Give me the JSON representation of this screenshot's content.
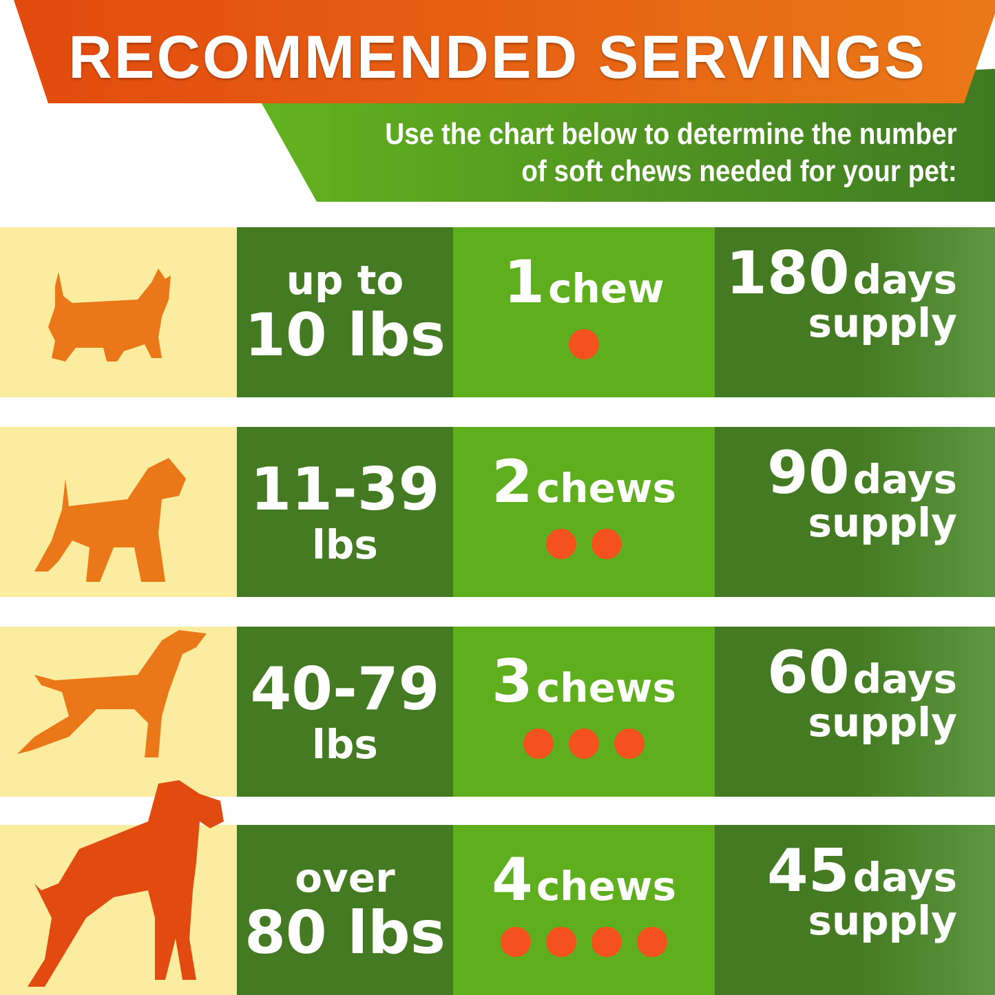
{
  "header": {
    "title": "RECOMMENDED SERVINGS",
    "subtitle_line1": "Use the chart below to determine the number",
    "subtitle_line2": "of soft chews needed for your pet:"
  },
  "colors": {
    "orange": "#e24a0e",
    "dark_green": "#437a22",
    "light_green": "#5fae1e",
    "cream": "#fbeca0",
    "dot": "#f4511e"
  },
  "rows": [
    {
      "icon": "small-terrier-silhouette",
      "weight_top": "up to",
      "weight_bottom": "10 lbs",
      "chew_num": "1",
      "chew_unit": "chew",
      "dots": 1,
      "days_num": "180",
      "days_unit": "days",
      "supply": "supply"
    },
    {
      "icon": "schnauzer-silhouette",
      "weight_top": "11-39",
      "weight_bottom": "lbs",
      "chew_num": "2",
      "chew_unit": "chews",
      "dots": 2,
      "days_num": "90",
      "days_unit": "days",
      "supply": "supply"
    },
    {
      "icon": "pointer-silhouette",
      "weight_top": "40-79",
      "weight_bottom": "lbs",
      "chew_num": "3",
      "chew_unit": "chews",
      "dots": 3,
      "days_num": "60",
      "days_unit": "days",
      "supply": "supply"
    },
    {
      "icon": "great-dane-silhouette",
      "weight_top": "over",
      "weight_bottom": "80 lbs",
      "chew_num": "4",
      "chew_unit": "chews",
      "dots": 4,
      "days_num": "45",
      "days_unit": "days",
      "supply": "supply"
    }
  ]
}
